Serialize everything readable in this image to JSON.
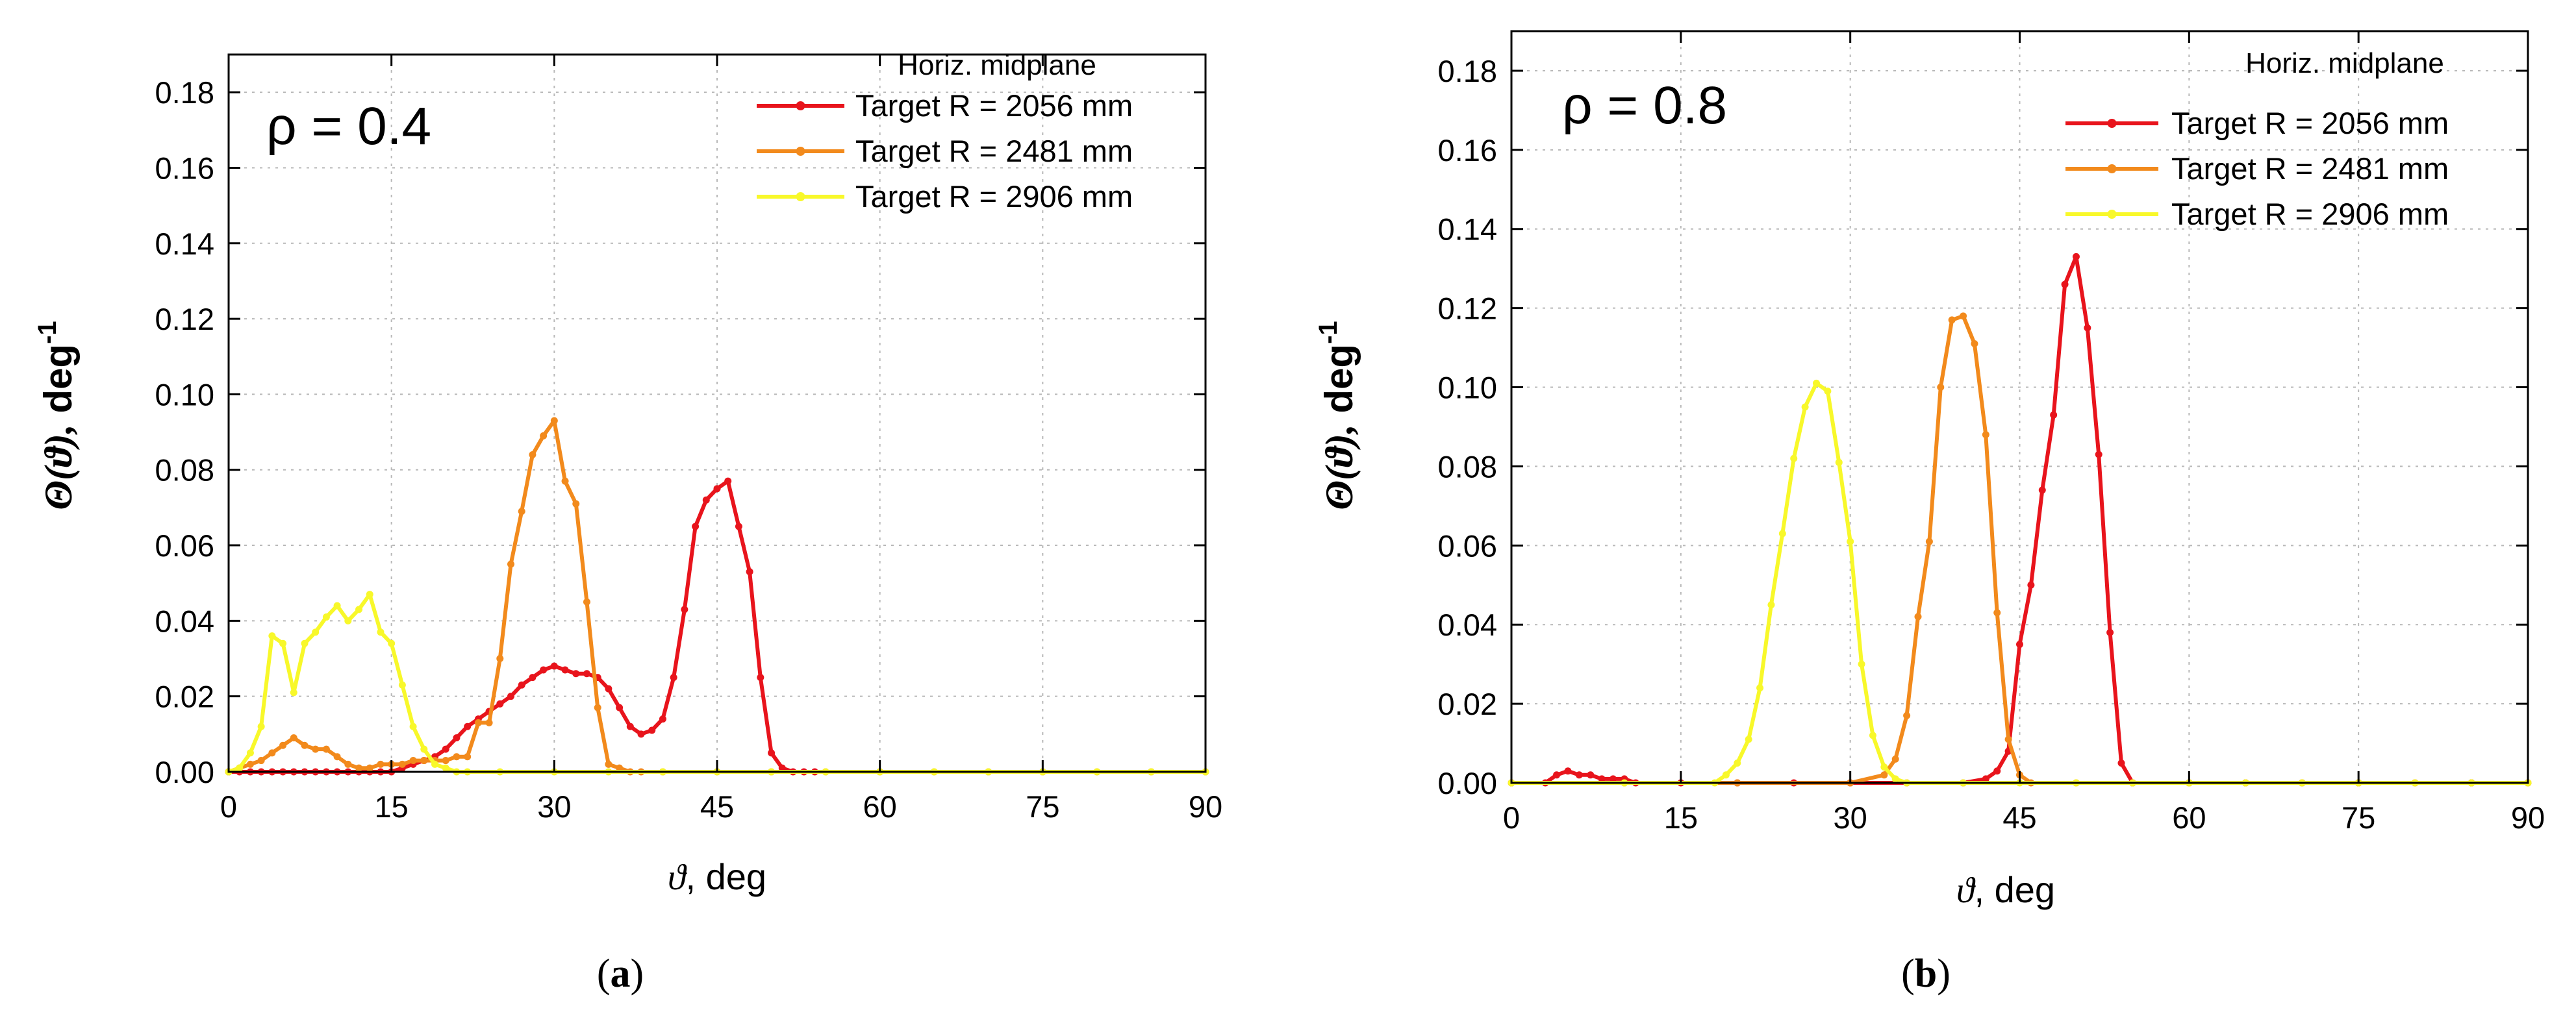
{
  "chart_data": [
    {
      "type": "line",
      "panel_label": "a",
      "annotation": "ρ = 0.4",
      "legend_title": "Horiz. midplane",
      "legend_position": "top-right",
      "ylabel": "Θ(ϑ), deg",
      "ylabel_sup": "-1",
      "xlabel": "ϑ, deg",
      "xlim": [
        0,
        90
      ],
      "ylim": [
        0,
        0.19
      ],
      "xticks": [
        0,
        15,
        30,
        45,
        60,
        75,
        90
      ],
      "yticks": [
        "0.00",
        "0.02",
        "0.04",
        "0.06",
        "0.08",
        "0.10",
        "0.12",
        "0.14",
        "0.16",
        "0.18"
      ],
      "grid": true,
      "series": [
        {
          "name": "Target R = 2056 mm",
          "color": "#e8141c",
          "points": [
            [
              0,
              0
            ],
            [
              1,
              0
            ],
            [
              2,
              0
            ],
            [
              3,
              0
            ],
            [
              4,
              0
            ],
            [
              5,
              0
            ],
            [
              6,
              0
            ],
            [
              7,
              0
            ],
            [
              8,
              0
            ],
            [
              9,
              0
            ],
            [
              10,
              0
            ],
            [
              11,
              0
            ],
            [
              12,
              0
            ],
            [
              13,
              0
            ],
            [
              14,
              0
            ],
            [
              15,
              0
            ],
            [
              16,
              0.001
            ],
            [
              17,
              0.002
            ],
            [
              18,
              0.003
            ],
            [
              19,
              0.004
            ],
            [
              20,
              0.006
            ],
            [
              21,
              0.009
            ],
            [
              22,
              0.012
            ],
            [
              23,
              0.014
            ],
            [
              24,
              0.016
            ],
            [
              25,
              0.018
            ],
            [
              26,
              0.02
            ],
            [
              27,
              0.023
            ],
            [
              28,
              0.025
            ],
            [
              29,
              0.027
            ],
            [
              30,
              0.028
            ],
            [
              31,
              0.027
            ],
            [
              32,
              0.026
            ],
            [
              33,
              0.026
            ],
            [
              34,
              0.025
            ],
            [
              35,
              0.022
            ],
            [
              36,
              0.017
            ],
            [
              37,
              0.012
            ],
            [
              38,
              0.01
            ],
            [
              39,
              0.011
            ],
            [
              40,
              0.014
            ],
            [
              41,
              0.025
            ],
            [
              42,
              0.043
            ],
            [
              43,
              0.065
            ],
            [
              44,
              0.072
            ],
            [
              45,
              0.075
            ],
            [
              46,
              0.077
            ],
            [
              47,
              0.065
            ],
            [
              48,
              0.053
            ],
            [
              49,
              0.025
            ],
            [
              50,
              0.005
            ],
            [
              51,
              0.001
            ],
            [
              52,
              0
            ],
            [
              53,
              0
            ],
            [
              54,
              0
            ]
          ]
        },
        {
          "name": "Target R = 2481 mm",
          "color": "#f28a1c",
          "points": [
            [
              0,
              0
            ],
            [
              1,
              0.001
            ],
            [
              2,
              0.002
            ],
            [
              3,
              0.003
            ],
            [
              4,
              0.005
            ],
            [
              5,
              0.007
            ],
            [
              6,
              0.009
            ],
            [
              7,
              0.007
            ],
            [
              8,
              0.006
            ],
            [
              9,
              0.006
            ],
            [
              10,
              0.004
            ],
            [
              11,
              0.002
            ],
            [
              12,
              0.001
            ],
            [
              13,
              0.001
            ],
            [
              14,
              0.002
            ],
            [
              15,
              0.002
            ],
            [
              16,
              0.002
            ],
            [
              17,
              0.003
            ],
            [
              18,
              0.003
            ],
            [
              19,
              0.003
            ],
            [
              20,
              0.003
            ],
            [
              21,
              0.004
            ],
            [
              22,
              0.004
            ],
            [
              23,
              0.013
            ],
            [
              24,
              0.013
            ],
            [
              25,
              0.03
            ],
            [
              26,
              0.055
            ],
            [
              27,
              0.069
            ],
            [
              28,
              0.084
            ],
            [
              29,
              0.089
            ],
            [
              30,
              0.093
            ],
            [
              31,
              0.077
            ],
            [
              32,
              0.071
            ],
            [
              33,
              0.045
            ],
            [
              34,
              0.017
            ],
            [
              35,
              0.002
            ],
            [
              36,
              0.001
            ],
            [
              37,
              0
            ],
            [
              38,
              0
            ],
            [
              40,
              0
            ],
            [
              45,
              0
            ],
            [
              50,
              0
            ],
            [
              55,
              0
            ],
            [
              60,
              0
            ],
            [
              65,
              0
            ],
            [
              70,
              0
            ],
            [
              75,
              0
            ],
            [
              80,
              0
            ],
            [
              85,
              0
            ],
            [
              90,
              0
            ]
          ]
        },
        {
          "name": "Target R = 2906 mm",
          "color": "#f8f82a",
          "points": [
            [
              0,
              0
            ],
            [
              1,
              0.001
            ],
            [
              2,
              0.005
            ],
            [
              3,
              0.012
            ],
            [
              4,
              0.036
            ],
            [
              5,
              0.034
            ],
            [
              6,
              0.021
            ],
            [
              7,
              0.034
            ],
            [
              8,
              0.037
            ],
            [
              9,
              0.041
            ],
            [
              10,
              0.044
            ],
            [
              11,
              0.04
            ],
            [
              12,
              0.043
            ],
            [
              13,
              0.047
            ],
            [
              14,
              0.037
            ],
            [
              15,
              0.034
            ],
            [
              16,
              0.023
            ],
            [
              17,
              0.012
            ],
            [
              18,
              0.006
            ],
            [
              19,
              0.002
            ],
            [
              20,
              0.001
            ],
            [
              21,
              0
            ],
            [
              22,
              0
            ],
            [
              25,
              0
            ],
            [
              30,
              0
            ],
            [
              35,
              0
            ],
            [
              40,
              0
            ],
            [
              45,
              0
            ],
            [
              50,
              0
            ],
            [
              55,
              0
            ],
            [
              60,
              0
            ],
            [
              65,
              0
            ],
            [
              70,
              0
            ],
            [
              75,
              0
            ],
            [
              80,
              0
            ],
            [
              85,
              0
            ],
            [
              90,
              0
            ]
          ]
        }
      ]
    },
    {
      "type": "line",
      "panel_label": "b",
      "annotation": "ρ = 0.8",
      "legend_title": "Horiz. midplane",
      "legend_position": "top-right",
      "ylabel": "Θ(ϑ), deg",
      "ylabel_sup": "-1",
      "xlabel": "ϑ, deg",
      "xlim": [
        0,
        90
      ],
      "ylim": [
        0,
        0.19
      ],
      "xticks": [
        0,
        15,
        30,
        45,
        60,
        75,
        90
      ],
      "yticks": [
        "0.00",
        "0.02",
        "0.04",
        "0.06",
        "0.08",
        "0.10",
        "0.12",
        "0.14",
        "0.16",
        "0.18"
      ],
      "grid": true,
      "series": [
        {
          "name": "Target R = 2056 mm",
          "color": "#e8141c",
          "points": [
            [
              0,
              0
            ],
            [
              3,
              0
            ],
            [
              4,
              0.002
            ],
            [
              5,
              0.003
            ],
            [
              6,
              0.002
            ],
            [
              7,
              0.002
            ],
            [
              8,
              0.001
            ],
            [
              9,
              0.001
            ],
            [
              10,
              0.001
            ],
            [
              11,
              0
            ],
            [
              15,
              0
            ],
            [
              20,
              0
            ],
            [
              25,
              0
            ],
            [
              30,
              0
            ],
            [
              35,
              0
            ],
            [
              40,
              0
            ],
            [
              42,
              0.001
            ],
            [
              43,
              0.003
            ],
            [
              44,
              0.008
            ],
            [
              45,
              0.035
            ],
            [
              46,
              0.05
            ],
            [
              47,
              0.074
            ],
            [
              48,
              0.093
            ],
            [
              49,
              0.126
            ],
            [
              50,
              0.133
            ],
            [
              51,
              0.115
            ],
            [
              52,
              0.083
            ],
            [
              53,
              0.038
            ],
            [
              54,
              0.005
            ],
            [
              55,
              0
            ],
            [
              60,
              0
            ],
            [
              65,
              0
            ],
            [
              70,
              0
            ],
            [
              75,
              0
            ],
            [
              80,
              0
            ],
            [
              85,
              0
            ],
            [
              90,
              0
            ]
          ]
        },
        {
          "name": "Target R = 2481 mm",
          "color": "#f28a1c",
          "points": [
            [
              0,
              0
            ],
            [
              10,
              0
            ],
            [
              20,
              0
            ],
            [
              30,
              0
            ],
            [
              33,
              0.002
            ],
            [
              34,
              0.006
            ],
            [
              35,
              0.017
            ],
            [
              36,
              0.042
            ],
            [
              37,
              0.061
            ],
            [
              38,
              0.1
            ],
            [
              39,
              0.117
            ],
            [
              40,
              0.118
            ],
            [
              41,
              0.111
            ],
            [
              42,
              0.088
            ],
            [
              43,
              0.043
            ],
            [
              44,
              0.011
            ],
            [
              45,
              0.002
            ],
            [
              46,
              0
            ],
            [
              50,
              0
            ],
            [
              55,
              0
            ],
            [
              60,
              0
            ],
            [
              65,
              0
            ],
            [
              70,
              0
            ],
            [
              75,
              0
            ],
            [
              80,
              0
            ],
            [
              85,
              0
            ],
            [
              90,
              0
            ]
          ]
        },
        {
          "name": "Target R = 2906 mm",
          "color": "#f8f82a",
          "points": [
            [
              0,
              0
            ],
            [
              10,
              0
            ],
            [
              18,
              0
            ],
            [
              19,
              0.002
            ],
            [
              20,
              0.005
            ],
            [
              21,
              0.011
            ],
            [
              22,
              0.024
            ],
            [
              23,
              0.045
            ],
            [
              24,
              0.063
            ],
            [
              25,
              0.082
            ],
            [
              26,
              0.095
            ],
            [
              27,
              0.101
            ],
            [
              28,
              0.099
            ],
            [
              29,
              0.081
            ],
            [
              30,
              0.061
            ],
            [
              31,
              0.03
            ],
            [
              32,
              0.012
            ],
            [
              33,
              0.004
            ],
            [
              34,
              0.001
            ],
            [
              35,
              0
            ],
            [
              40,
              0
            ],
            [
              45,
              0
            ],
            [
              50,
              0
            ],
            [
              55,
              0
            ],
            [
              60,
              0
            ],
            [
              65,
              0
            ],
            [
              70,
              0
            ],
            [
              75,
              0
            ],
            [
              80,
              0
            ],
            [
              85,
              0
            ],
            [
              90,
              0
            ]
          ]
        }
      ]
    }
  ]
}
